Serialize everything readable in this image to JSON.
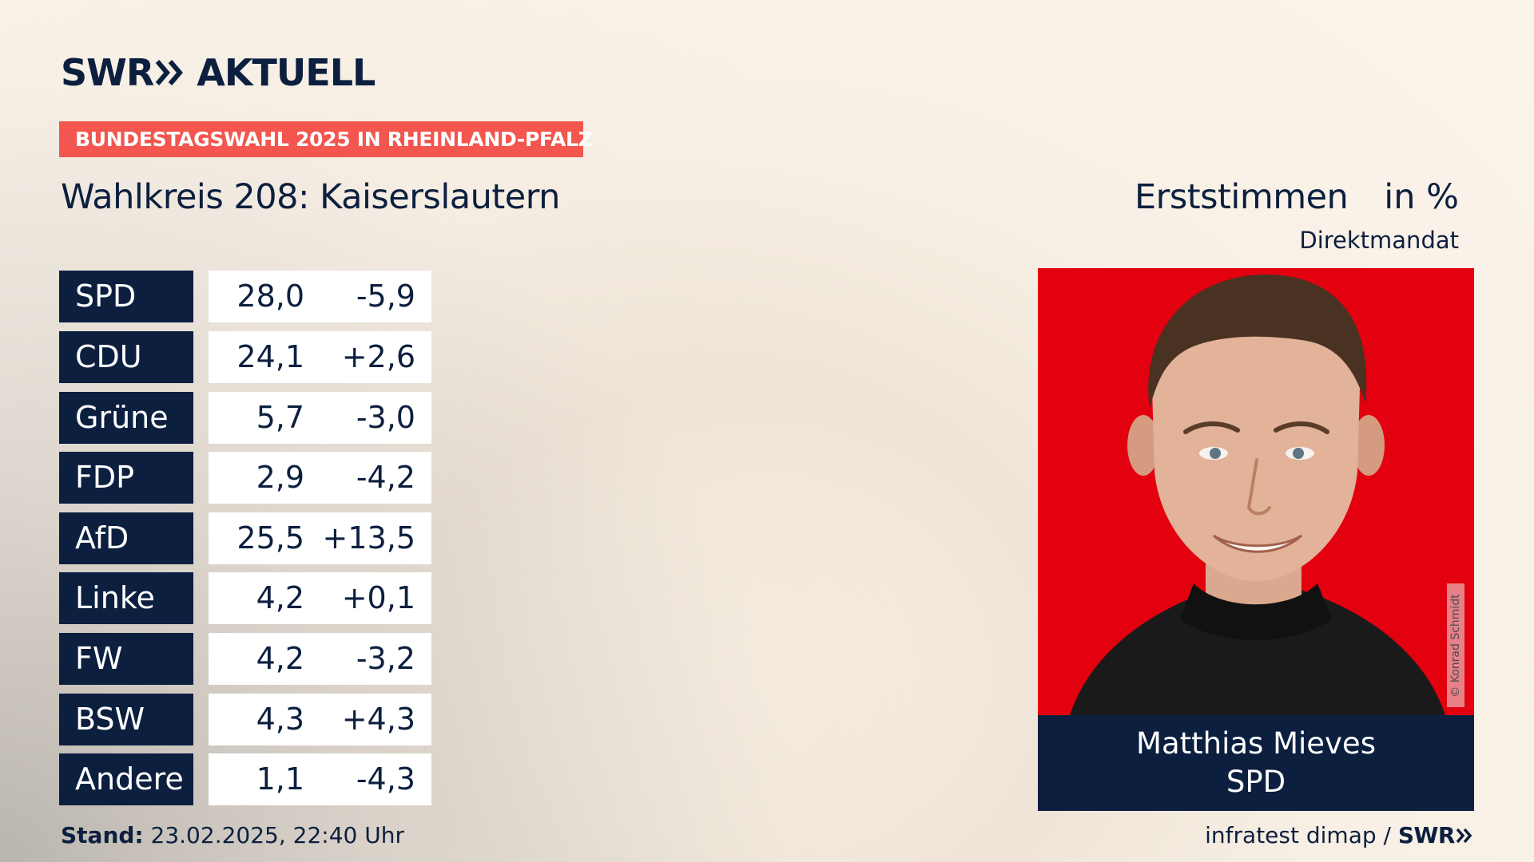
{
  "brand": {
    "logo_left": "SWR",
    "logo_right": "AKTUELL",
    "accent_color": "#f2564e",
    "navy_color": "#0c1f3f"
  },
  "banner": {
    "text": "BUNDESTAGSWAHL 2025 IN RHEINLAND-PFALZ"
  },
  "district": {
    "title": "Wahlkreis 208: Kaiserslautern"
  },
  "header": {
    "label": "Erststimmen",
    "unit": "in %",
    "mandate": "Direktmandat"
  },
  "results": [
    {
      "party": "SPD",
      "share": "28,0",
      "change": "-5,9"
    },
    {
      "party": "CDU",
      "share": "24,1",
      "change": "+2,6"
    },
    {
      "party": "Grüne",
      "share": "5,7",
      "change": "-3,0"
    },
    {
      "party": "FDP",
      "share": "2,9",
      "change": "-4,2"
    },
    {
      "party": "AfD",
      "share": "25,5",
      "change": "+13,5"
    },
    {
      "party": "Linke",
      "share": "4,2",
      "change": "+0,1"
    },
    {
      "party": "FW",
      "share": "4,2",
      "change": "-3,2"
    },
    {
      "party": "BSW",
      "share": "4,3",
      "change": "+4,3"
    },
    {
      "party": "Andere",
      "share": "1,1",
      "change": "-4,3"
    }
  ],
  "candidate": {
    "name": "Matthias Mieves",
    "party": "SPD",
    "photo_credit": "© Konrad Schmidt",
    "photo_background": "#e3000f"
  },
  "footer": {
    "stand_label": "Stand:",
    "stand_value": "23.02.2025, 22:40 Uhr",
    "source": "infratest dimap /",
    "source_brand": "SWR"
  }
}
